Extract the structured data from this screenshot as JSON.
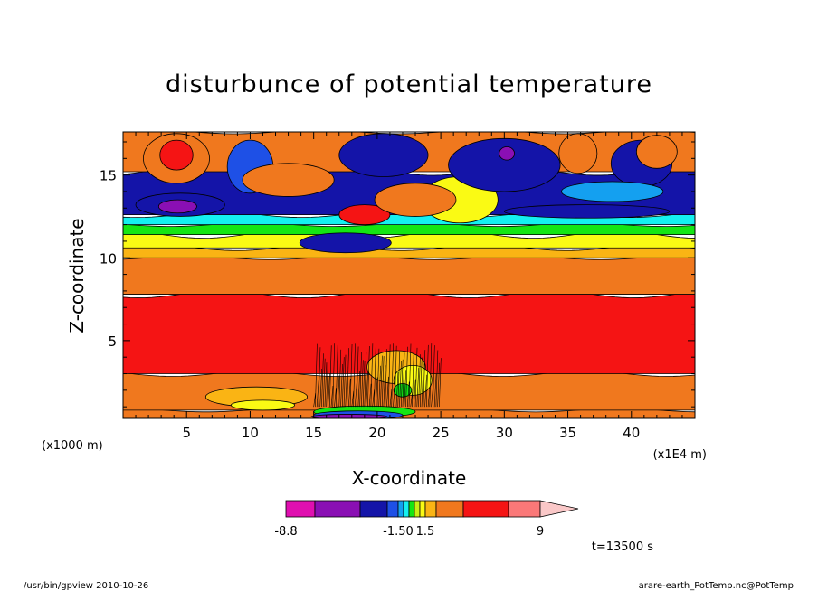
{
  "chart_data": {
    "type": "heatmap",
    "title": "disturbunce of potential temperature",
    "xlabel": "X-coordinate",
    "ylabel": "Z-coordinate",
    "x_unit_left": "(x1000 m)",
    "x_unit_right": "(x1E4 m)",
    "xlim": [
      0,
      45
    ],
    "ylim": [
      0.3,
      17.6
    ],
    "x_ticks": [
      5,
      10,
      15,
      20,
      25,
      30,
      35,
      40
    ],
    "y_ticks": [
      5,
      10,
      15
    ],
    "x_tick_labels": [
      "5",
      "10",
      "15",
      "20",
      "25",
      "30",
      "35",
      "40"
    ],
    "y_tick_labels": [
      "5",
      "10",
      "15"
    ],
    "time_label": "t=13500 s",
    "footer_left": "/usr/bin/gpview  2010-10-26",
    "footer_right": "arare-earth_PotTemp.nc@PotTemp",
    "colorbar": {
      "colors": [
        "#e00fb0",
        "#8a0fb4",
        "#1414a8",
        "#1e50e6",
        "#14a0f0",
        "#14f0f0",
        "#14e614",
        "#c8f014",
        "#fafa14",
        "#fab414",
        "#f0781e",
        "#f51414",
        "#fa7878",
        "#fac8c8"
      ],
      "labels": [
        {
          "value": "-8.8",
          "at": 0
        },
        {
          "value": "-1.50",
          "at": 4
        },
        {
          "value": "1.5",
          "at": 9
        },
        {
          "value": "9",
          "at": 13
        }
      ]
    },
    "bands": [
      {
        "z": [
          0.3,
          0.8
        ],
        "color": "#f0781e"
      },
      {
        "z": [
          0.8,
          3.0
        ],
        "color": "#f0781e"
      },
      {
        "z": [
          3.0,
          7.8
        ],
        "color": "#f51414"
      },
      {
        "z": [
          7.8,
          10.0
        ],
        "color": "#f0781e"
      },
      {
        "z": [
          10.0,
          10.6
        ],
        "color": "#fab414"
      },
      {
        "z": [
          10.6,
          11.4
        ],
        "color": "#fafa14"
      },
      {
        "z": [
          11.4,
          12.0
        ],
        "color": "#14e614"
      },
      {
        "z": [
          12.0,
          12.6
        ],
        "color": "#14f0f0"
      },
      {
        "z": [
          12.6,
          15.2
        ],
        "color": "#1414a8"
      },
      {
        "z": [
          15.2,
          17.6
        ],
        "color": "#f0781e"
      }
    ],
    "blobs": [
      {
        "x": 4.2,
        "z": 16.0,
        "rx": 2.6,
        "rz": 1.5,
        "color": "#f0781e"
      },
      {
        "x": 4.2,
        "z": 16.2,
        "rx": 1.3,
        "rz": 0.9,
        "color": "#f51414"
      },
      {
        "x": 4.5,
        "z": 13.2,
        "rx": 3.5,
        "rz": 0.7,
        "color": "#1414a8"
      },
      {
        "x": 4.3,
        "z": 13.1,
        "rx": 1.5,
        "rz": 0.4,
        "color": "#8a0fb4"
      },
      {
        "x": 10.0,
        "z": 15.5,
        "rx": 1.8,
        "rz": 1.6,
        "color": "#1e50e6"
      },
      {
        "x": 13.0,
        "z": 14.7,
        "rx": 3.6,
        "rz": 1.0,
        "color": "#f0781e"
      },
      {
        "x": 19.0,
        "z": 12.6,
        "rx": 2.0,
        "rz": 0.6,
        "color": "#f51414"
      },
      {
        "x": 20.5,
        "z": 16.2,
        "rx": 3.5,
        "rz": 1.3,
        "color": "#1414a8"
      },
      {
        "x": 26.5,
        "z": 13.5,
        "rx": 3.0,
        "rz": 1.4,
        "color": "#fafa14"
      },
      {
        "x": 23.0,
        "z": 13.5,
        "rx": 3.2,
        "rz": 1.0,
        "color": "#f0781e"
      },
      {
        "x": 17.5,
        "z": 10.9,
        "rx": 3.6,
        "rz": 0.6,
        "color": "#1414a8"
      },
      {
        "x": 30.0,
        "z": 15.6,
        "rx": 4.4,
        "rz": 1.6,
        "color": "#1414a8"
      },
      {
        "x": 30.2,
        "z": 16.3,
        "rx": 0.6,
        "rz": 0.4,
        "color": "#8a0fb4"
      },
      {
        "x": 35.8,
        "z": 16.3,
        "rx": 1.5,
        "rz": 1.2,
        "color": "#f0781e"
      },
      {
        "x": 40.8,
        "z": 15.7,
        "rx": 2.4,
        "rz": 1.4,
        "color": "#1414a8"
      },
      {
        "x": 42.0,
        "z": 16.4,
        "rx": 1.6,
        "rz": 1.0,
        "color": "#f0781e"
      },
      {
        "x": 36.5,
        "z": 12.8,
        "rx": 6.5,
        "rz": 0.4,
        "color": "#1414a8"
      },
      {
        "x": 38.5,
        "z": 14.0,
        "rx": 4.0,
        "rz": 0.6,
        "color": "#14a0f0"
      },
      {
        "x": 21.5,
        "z": 3.4,
        "rx": 2.3,
        "rz": 1.0,
        "color": "#fab414"
      },
      {
        "x": 22.8,
        "z": 2.6,
        "rx": 1.5,
        "rz": 0.9,
        "color": "#fafa14"
      },
      {
        "x": 22.0,
        "z": 2.0,
        "rx": 0.7,
        "rz": 0.4,
        "color": "#14e614"
      },
      {
        "x": 10.5,
        "z": 1.6,
        "rx": 4.0,
        "rz": 0.6,
        "color": "#fab414"
      },
      {
        "x": 11.0,
        "z": 1.1,
        "rx": 2.5,
        "rz": 0.3,
        "color": "#fafa14"
      },
      {
        "x": 19.0,
        "z": 0.7,
        "rx": 4.0,
        "rz": 0.35,
        "color": "#14e614"
      },
      {
        "x": 18.5,
        "z": 0.5,
        "rx": 3.5,
        "rz": 0.25,
        "color": "#1e50e6"
      },
      {
        "x": 17.8,
        "z": 0.4,
        "rx": 3.0,
        "rz": 0.15,
        "color": "#8a0fb4"
      }
    ]
  }
}
